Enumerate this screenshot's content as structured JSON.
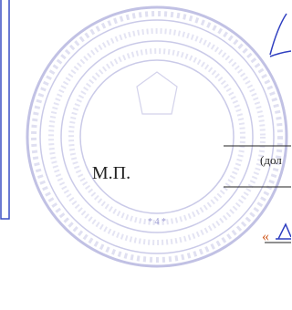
{
  "stamp": {
    "label": "М.П.",
    "center_text": "* 4 *"
  },
  "fields": {
    "position_hint": "(дол",
    "date_quote": "«"
  }
}
